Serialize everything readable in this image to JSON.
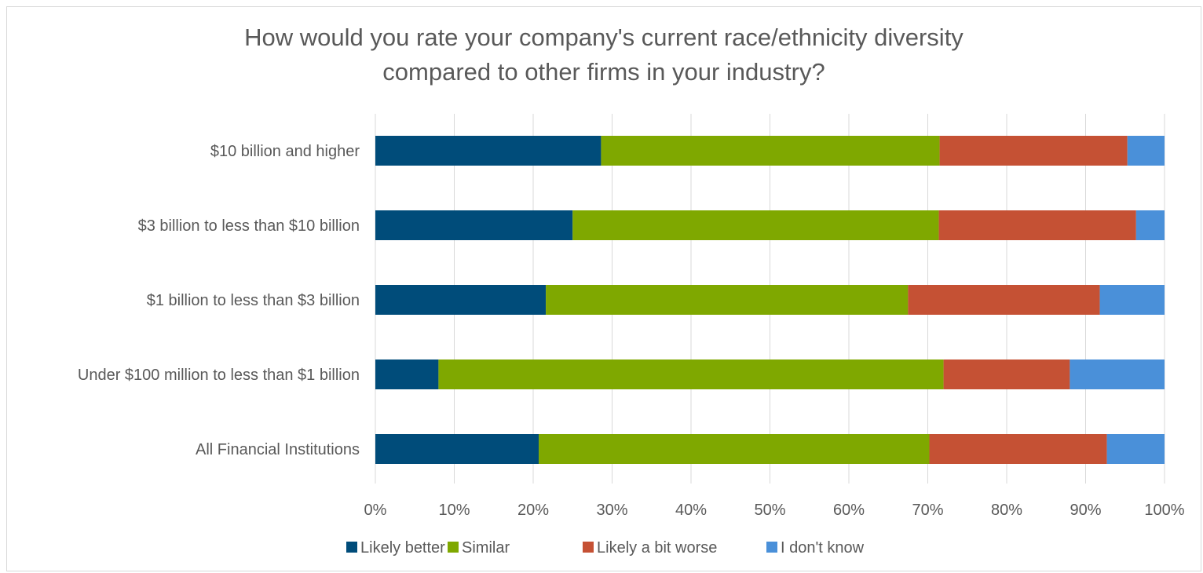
{
  "chart_data": {
    "type": "bar",
    "orientation": "horizontal",
    "stacked": true,
    "title_lines": [
      "How would you rate your company's current race/ethnicity diversity",
      "compared to other firms in your industry?"
    ],
    "categories": [
      "$10 billion and higher",
      "$3 billion to less than $10 billion",
      "$1 billion to less than $3 billion",
      "Under $100 million to less than $1 billion",
      "All Financial Institutions"
    ],
    "series": [
      {
        "name": "Likely better",
        "color": "#004c7a",
        "values": [
          28.6,
          25.0,
          21.6,
          8.0,
          20.7
        ]
      },
      {
        "name": "Similar",
        "color": "#7fa800",
        "values": [
          42.9,
          46.4,
          45.9,
          64.0,
          49.5
        ]
      },
      {
        "name": "Likely a bit worse",
        "color": "#c55134",
        "values": [
          23.8,
          25.0,
          24.3,
          16.0,
          22.5
        ]
      },
      {
        "name": "I don't know",
        "color": "#4a90d9",
        "values": [
          4.7,
          3.6,
          8.2,
          12.0,
          7.3
        ]
      }
    ],
    "x_ticks": [
      "0%",
      "10%",
      "20%",
      "30%",
      "40%",
      "50%",
      "60%",
      "70%",
      "80%",
      "90%",
      "100%"
    ],
    "xlim": [
      0,
      100
    ],
    "grid": true,
    "legend_position": "bottom"
  }
}
